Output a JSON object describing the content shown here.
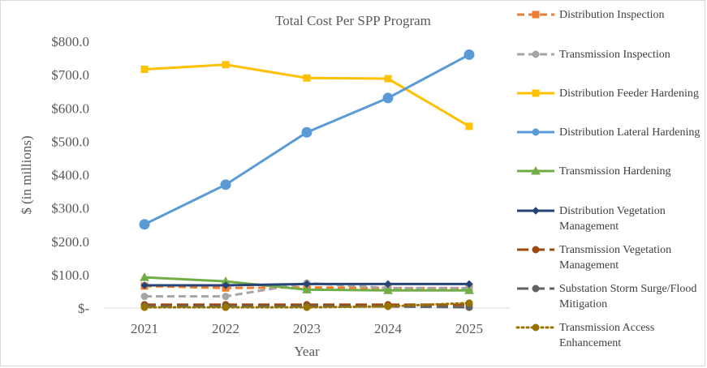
{
  "chart_data": {
    "type": "line",
    "title": "Total Cost Per SPP Program",
    "xlabel": "Year",
    "ylabel": "$ (in millions)",
    "categories": [
      "2021",
      "2022",
      "2023",
      "2024",
      "2025"
    ],
    "y_ticks": [
      "$-",
      "$100.0",
      "$200.0",
      "$300.0",
      "$400.0",
      "$500.0",
      "$600.0",
      "$700.0",
      "$800.0"
    ],
    "ylim": [
      0,
      800
    ],
    "grid": false,
    "legend_position": "right",
    "series": [
      {
        "name": "Distribution Inspection",
        "values": [
          66,
          60,
          62,
          60,
          60
        ],
        "color": "#ED7D31",
        "dash": "dash",
        "marker": "square",
        "width": 3
      },
      {
        "name": "Transmission Inspection",
        "values": [
          35,
          35,
          75,
          60,
          60
        ],
        "color": "#A5A5A5",
        "dash": "dash",
        "marker": "circle",
        "width": 3
      },
      {
        "name": "Distribution Feeder Hardening",
        "values": [
          716,
          730,
          690,
          688,
          545
        ],
        "color": "#FFC000",
        "dash": "solid",
        "marker": "square",
        "width": 3
      },
      {
        "name": "Distribution Lateral Hardening",
        "values": [
          251,
          370,
          527,
          630,
          760
        ],
        "color": "#5B9BD5",
        "dash": "solid",
        "marker": "circle",
        "width": 3
      },
      {
        "name": "Transmission Hardening",
        "values": [
          92,
          80,
          55,
          53,
          53
        ],
        "color": "#70AD47",
        "dash": "solid",
        "marker": "triangle",
        "width": 3
      },
      {
        "name": "Distribution Vegetation Management",
        "values": [
          68,
          68,
          72,
          72,
          72
        ],
        "color": "#264478",
        "dash": "solid",
        "marker": "diamond",
        "width": 3
      },
      {
        "name": "Transmission Vegetation Management",
        "values": [
          10,
          10,
          10,
          10,
          10
        ],
        "color": "#9E480E",
        "dash": "longdash",
        "marker": "circle",
        "width": 3
      },
      {
        "name": "Substation Storm Surge/Flood Mitigation",
        "values": [
          5,
          5,
          5,
          5,
          2
        ],
        "color": "#636363",
        "dash": "longdash",
        "marker": "circle",
        "width": 3
      },
      {
        "name": "Transmission Access Enhancement",
        "values": [
          2,
          2,
          2,
          5,
          15
        ],
        "color": "#997300",
        "dash": "dot",
        "marker": "circle",
        "width": 3
      }
    ]
  }
}
